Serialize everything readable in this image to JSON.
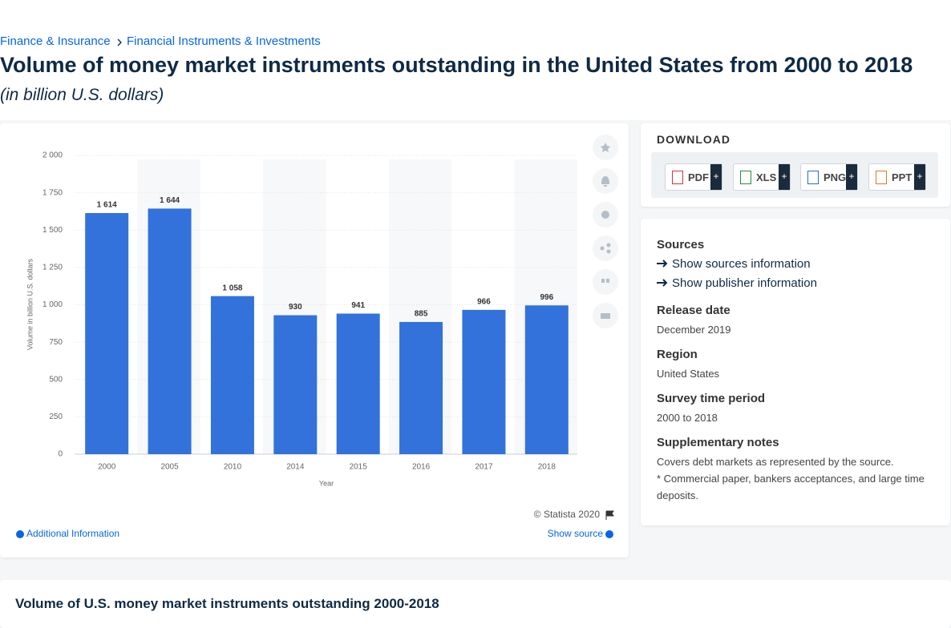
{
  "breadcrumb": [
    "Finance & Insurance",
    "Financial Instruments & Investments"
  ],
  "chart_data": {
    "type": "bar",
    "title": "Volume of money market instruments outstanding in the United States from 2000 to 2018",
    "subtitle": "(in billion U.S. dollars)",
    "categories": [
      "2000",
      "2005",
      "2010",
      "2014",
      "2015",
      "2016",
      "2017",
      "2018"
    ],
    "values": [
      1614,
      1644,
      1058,
      930,
      941,
      885,
      966,
      996
    ],
    "value_labels": [
      "1 614",
      "1 644",
      "1 058",
      "930",
      "941",
      "885",
      "966",
      "996"
    ],
    "color": "#3272da",
    "ylim": [
      0,
      2000
    ],
    "yticks": [
      0,
      250,
      500,
      750,
      {
        "value": 1000,
        "label": "1 000"
      },
      {
        "value": 1250,
        "label": "1 250"
      },
      {
        "value": 1500,
        "label": "1 500"
      },
      {
        "value": 1750,
        "label": "1 750"
      },
      {
        "value": 2000,
        "label": "2 000"
      }
    ],
    "grid": true,
    "x_label": "Year",
    "y_label": "Volume in billion U.S. dollars"
  },
  "chart_footer": {
    "copyright": "© Statista 2020",
    "additional": "Additional Information",
    "source": "Show source"
  },
  "download": {
    "title": "DOWNLOAD",
    "buttons": [
      {
        "label": "PDF",
        "plus": "+"
      },
      {
        "label": "XLS",
        "plus": "+"
      },
      {
        "label": "PNG",
        "plus": "+"
      },
      {
        "label": "PPT",
        "plus": "+"
      }
    ]
  },
  "details": {
    "sources_title": "Sources",
    "links": [
      "Show sources information",
      "Show publisher information"
    ],
    "items": [
      {
        "title": "Release date",
        "text": [
          "December 2019"
        ]
      },
      {
        "title": "Region",
        "text": [
          "United States"
        ]
      },
      {
        "title": "Survey time period",
        "text": [
          "2000 to 2018"
        ]
      },
      {
        "title": "Supplementary notes",
        "text": [
          "Covers debt markets as represented by the source.",
          "* Commercial paper, bankers acceptances, and large time deposits."
        ]
      }
    ]
  },
  "related_title": "Volume of U.S. money market instruments outstanding 2000-2018"
}
